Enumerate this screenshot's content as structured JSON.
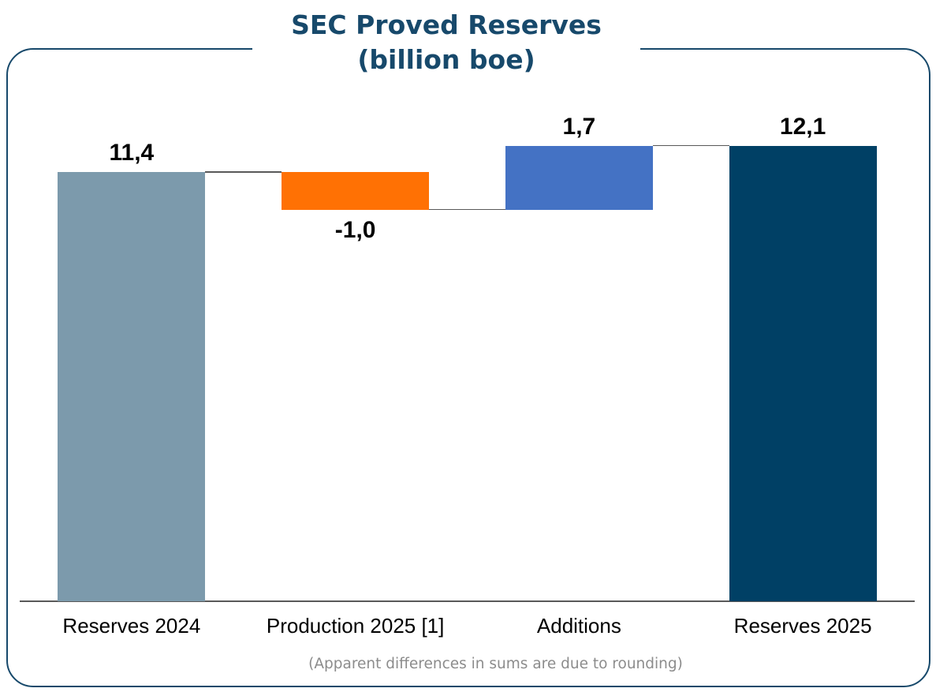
{
  "footnote": "(Apparent differences in sums are due to rounding)",
  "colors": {
    "background": "#FFFFFF",
    "frame_border": "#17496B",
    "title_text": "#17496B",
    "axis_line": "#595959",
    "connector": "#595959",
    "label_text": "#000000",
    "footnote_text": "#8C8C8C"
  },
  "chart_data": {
    "type": "waterfall",
    "title": "SEC Proved Reserves",
    "subtitle": "(billion boe)",
    "unit": "billion boe",
    "categories": [
      "Reserves 2024",
      "Production 2025 [1]",
      "Additions",
      "Reserves 2025"
    ],
    "series": [
      {
        "name": "Reserves 2024",
        "kind": "absolute",
        "value": 11.4,
        "label": "11,4",
        "color": "#7C9AAC"
      },
      {
        "name": "Production 2025 [1]",
        "kind": "relative",
        "value": -1.0,
        "label": "-1,0",
        "color": "#FF7104"
      },
      {
        "name": "Additions",
        "kind": "relative",
        "value": 1.7,
        "label": "1,7",
        "color": "#4472C4"
      },
      {
        "name": "Reserves 2025",
        "kind": "total",
        "value": 12.1,
        "label": "12,1",
        "color": "#004065"
      }
    ],
    "ylim": [
      0,
      12.75
    ],
    "grid": false,
    "legend": false,
    "value_format": "comma-decimal"
  }
}
